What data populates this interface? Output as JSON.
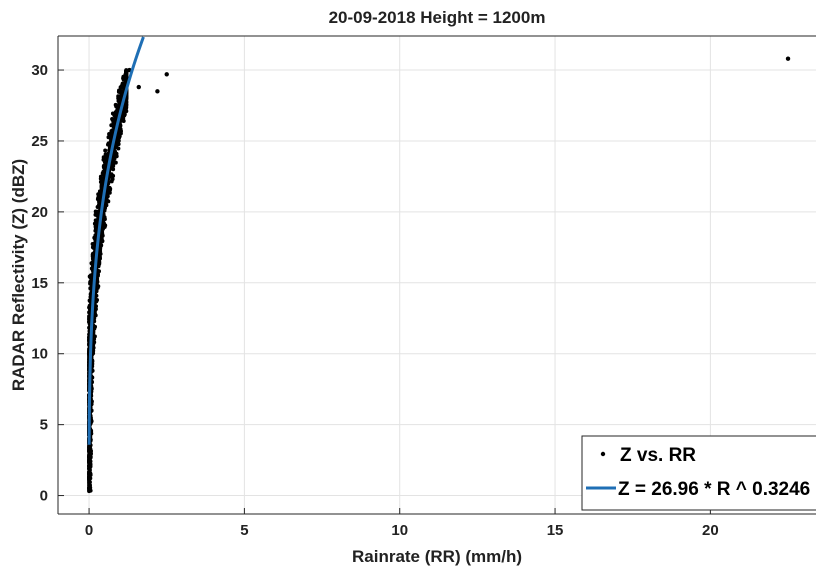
{
  "chart_data": {
    "type": "scatter",
    "title": "20-09-2018 Height = 1200m",
    "xlabel": "Rainrate (RR) (mm/h)",
    "ylabel": "RADAR Reflectivity (Z) (dBZ)",
    "xlim": [
      -1,
      23.4
    ],
    "ylim": [
      -1.3,
      32.4
    ],
    "xticks": [
      0,
      5,
      10,
      15,
      20
    ],
    "yticks": [
      0,
      5,
      10,
      15,
      20,
      25,
      30
    ],
    "grid": true,
    "legend_position": "bottom-right",
    "series": [
      {
        "name": "Z vs. RR",
        "kind": "scatter",
        "color": "#000000",
        "cluster": {
          "description": "dense band of points along the fit curve",
          "x_range": [
            0,
            1.2
          ],
          "y_range": [
            0.3,
            30
          ],
          "count": 1800
        },
        "points": [
          [
            1.3,
            30.0
          ],
          [
            1.6,
            28.8
          ],
          [
            2.2,
            28.5
          ],
          [
            2.5,
            29.7
          ],
          [
            22.5,
            30.8
          ]
        ]
      },
      {
        "name": "Z = 26.96 * R ^ 0.3246",
        "kind": "line",
        "color": "#1f6fb5",
        "model": {
          "a": 26.96,
          "b": 0.3246
        },
        "x_range": [
          0.002,
          1.75
        ]
      }
    ]
  }
}
